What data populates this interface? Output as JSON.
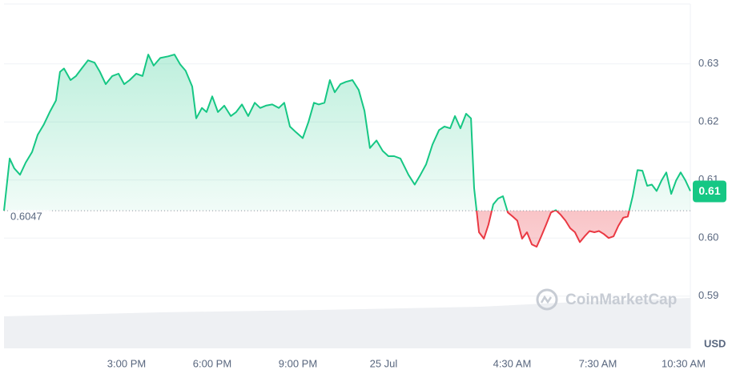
{
  "chart_data": {
    "type": "line",
    "x": [
      10.71,
      10.91,
      11.07,
      11.27,
      11.47,
      11.69,
      11.89,
      12.11,
      12.31,
      12.53,
      12.67,
      12.81,
      13.04,
      13.23,
      13.43,
      13.65,
      13.88,
      14.07,
      14.27,
      14.5,
      14.72,
      14.92,
      15.11,
      15.34,
      15.56,
      15.76,
      15.95,
      16.18,
      16.46,
      16.68,
      16.88,
      17.07,
      17.3,
      17.44,
      17.64,
      17.8,
      18.0,
      18.2,
      18.42,
      18.65,
      18.84,
      19.04,
      19.26,
      19.49,
      19.68,
      19.88,
      20.1,
      20.33,
      20.52,
      20.72,
      20.94,
      21.17,
      21.37,
      21.56,
      21.73,
      21.93,
      22.12,
      22.29,
      22.49,
      22.68,
      22.91,
      23.13,
      23.33,
      23.52,
      23.75,
      23.97,
      24.17,
      24.37,
      24.59,
      24.87,
      25.09,
      25.29,
      25.49,
      25.71,
      25.94,
      26.13,
      26.33,
      26.5,
      26.69,
      26.89,
      27.06,
      27.17,
      27.34,
      27.51,
      27.67,
      27.84,
      28.01,
      28.18,
      28.35,
      28.52,
      28.68,
      28.85,
      29.02,
      29.19,
      29.36,
      29.52,
      29.69,
      29.86,
      30.03,
      30.2,
      30.37,
      30.53,
      30.7,
      30.87,
      31.04,
      31.21,
      31.38,
      31.54,
      31.71,
      31.88,
      32.05,
      32.22,
      32.39,
      32.55,
      32.72,
      32.89,
      33.06,
      33.23,
      33.39,
      33.56,
      33.73,
      33.9,
      34.07,
      34.24,
      34.4,
      34.57,
      34.74
    ],
    "series": [
      {
        "color": "#16c784",
        "color_below": "#ea3943",
        "values": [
          0.6047,
          0.6137,
          0.612,
          0.6109,
          0.613,
          0.6148,
          0.6178,
          0.6196,
          0.6217,
          0.6237,
          0.6286,
          0.6292,
          0.6272,
          0.6279,
          0.6292,
          0.6306,
          0.6302,
          0.6286,
          0.6265,
          0.6279,
          0.6283,
          0.6265,
          0.6272,
          0.6283,
          0.6279,
          0.6316,
          0.6297,
          0.631,
          0.6313,
          0.6316,
          0.6299,
          0.6288,
          0.6261,
          0.6206,
          0.6224,
          0.6217,
          0.6244,
          0.6217,
          0.6228,
          0.621,
          0.6217,
          0.623,
          0.621,
          0.6233,
          0.6224,
          0.6228,
          0.623,
          0.6224,
          0.6233,
          0.6192,
          0.6182,
          0.6172,
          0.62,
          0.6233,
          0.623,
          0.6233,
          0.6272,
          0.6251,
          0.6265,
          0.6269,
          0.6272,
          0.6255,
          0.6219,
          0.6155,
          0.6168,
          0.615,
          0.6141,
          0.6141,
          0.6137,
          0.6109,
          0.6092,
          0.6109,
          0.6127,
          0.6161,
          0.6186,
          0.6192,
          0.6189,
          0.621,
          0.6189,
          0.6214,
          0.6206,
          0.6086,
          0.601,
          0.5999,
          0.6023,
          0.6058,
          0.6068,
          0.6072,
          0.6044,
          0.6037,
          0.603,
          0.5999,
          0.601,
          0.5989,
          0.5985,
          0.6003,
          0.6023,
          0.6044,
          0.6048,
          0.604,
          0.603,
          0.6017,
          0.601,
          0.5993,
          0.6003,
          0.6012,
          0.601,
          0.6012,
          0.6007,
          0.6,
          0.6003,
          0.6021,
          0.6035,
          0.6037,
          0.6072,
          0.6117,
          0.6116,
          0.609,
          0.6092,
          0.6081,
          0.6099,
          0.6113,
          0.6076,
          0.6099,
          0.6113,
          0.6099,
          0.6081
        ]
      }
    ],
    "baseline": 0.6047,
    "current_label": "0.61",
    "y_unit": "USD",
    "watermark": "CoinMarketCap",
    "xlim": [
      10.71,
      34.74
    ],
    "xticks": [
      {
        "value": 15,
        "label": "3:00 PM"
      },
      {
        "value": 18,
        "label": "6:00 PM"
      },
      {
        "value": 21,
        "label": "9:00 PM"
      },
      {
        "value": 24,
        "label": "25 Jul"
      },
      {
        "value": 28.5,
        "label": "4:30 AM"
      },
      {
        "value": 31.5,
        "label": "7:30 AM"
      },
      {
        "value": 34.5,
        "label": "10:30 AM"
      }
    ],
    "ylim": [
      0.581,
      0.6403
    ],
    "yticks": [
      0.59,
      {
        "value": 0.6,
        "label": "0.60"
      },
      0.61,
      0.62,
      0.63
    ],
    "grid": true
  }
}
